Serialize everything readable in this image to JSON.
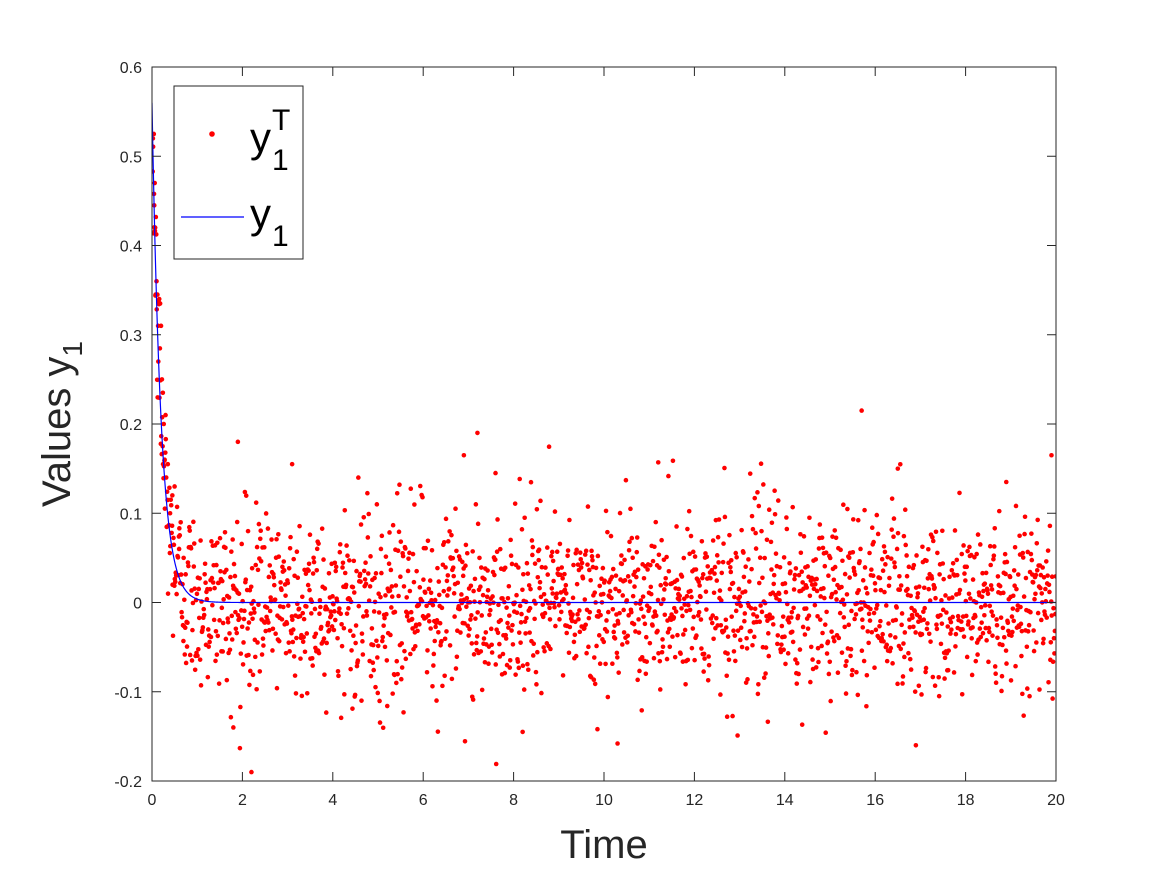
{
  "chart_data": {
    "type": "scatter",
    "title": "",
    "xlabel": "Time",
    "ylabel": "Values y",
    "ylabel_subscript": "1",
    "xlim": [
      0,
      20
    ],
    "ylim": [
      -0.2,
      0.6
    ],
    "xticks": [
      0,
      2,
      4,
      6,
      8,
      10,
      12,
      14,
      16,
      18,
      20
    ],
    "yticks": [
      -0.2,
      -0.1,
      0,
      0.1,
      0.2,
      0.3,
      0.4,
      0.5,
      0.6
    ],
    "xtick_labels": [
      "0",
      "2",
      "4",
      "6",
      "8",
      "10",
      "12",
      "14",
      "16",
      "18",
      "20"
    ],
    "ytick_labels": [
      "-0.2",
      "-0.1",
      "0",
      "0.1",
      "0.2",
      "0.3",
      "0.4",
      "0.5",
      "0.6"
    ],
    "grid": false,
    "legend_placement": "top-left",
    "series": [
      {
        "name": "y",
        "name_subscript": "1",
        "name_superscript": "T",
        "type": "scatter",
        "color": "#ff0000",
        "sample_interval": 0.01,
        "noise_std": 0.05,
        "point_count": 2000,
        "note": "noisy observations scattered around the fitted curve",
        "points": [
          [
            0.02,
            0.52
          ],
          [
            0.04,
            0.525
          ],
          [
            0.05,
            0.445
          ],
          [
            0.06,
            0.47
          ],
          [
            0.07,
            0.42
          ],
          [
            0.08,
            0.345
          ],
          [
            0.1,
            0.36
          ],
          [
            0.12,
            0.345
          ],
          [
            0.14,
            0.27
          ],
          [
            0.16,
            0.34
          ],
          [
            0.18,
            0.335
          ],
          [
            0.2,
            0.31
          ],
          [
            0.22,
            0.25
          ],
          [
            0.24,
            0.235
          ],
          [
            0.26,
            0.2
          ],
          [
            0.28,
            0.16
          ],
          [
            0.3,
            0.21
          ],
          [
            0.35,
            0.155
          ],
          [
            0.4,
            0.1
          ],
          [
            0.45,
            0.12
          ],
          [
            0.5,
            0.13
          ],
          [
            0.6,
            0.06
          ],
          [
            0.7,
            0.05
          ],
          [
            1.9,
            0.18
          ],
          [
            2.2,
            -0.19
          ],
          [
            1.8,
            -0.14
          ],
          [
            3.1,
            0.155
          ],
          [
            7.2,
            0.19
          ],
          [
            6.9,
            0.165
          ],
          [
            15.7,
            0.215
          ],
          [
            16.9,
            -0.16
          ],
          [
            19.9,
            0.165
          ],
          [
            10.3,
            -0.158
          ],
          [
            8.2,
            -0.145
          ],
          [
            16.5,
            0.15
          ],
          [
            11.2,
            0.157
          ],
          [
            7.6,
            0.145
          ],
          [
            18.9,
            0.135
          ]
        ]
      },
      {
        "name": "y",
        "name_subscript": "1",
        "type": "line",
        "color": "#0000ff",
        "model": "0.56 * exp(-5 * t)",
        "x": [
          0,
          0.05,
          0.1,
          0.2,
          0.3,
          0.4,
          0.5,
          0.6,
          0.8,
          1.0,
          1.5,
          2.0,
          3.0,
          5.0,
          10.0,
          20.0
        ],
        "values": [
          0.56,
          0.436,
          0.34,
          0.206,
          0.125,
          0.076,
          0.046,
          0.028,
          0.01,
          0.004,
          0.0003,
          0.0,
          0.0,
          0.0,
          0.0,
          0.0
        ]
      }
    ]
  }
}
